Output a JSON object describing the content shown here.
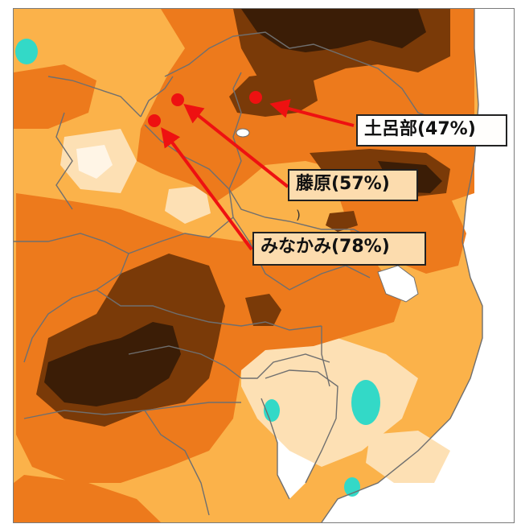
{
  "map": {
    "stations": [
      {
        "name": "土呂部",
        "value": "(47%)",
        "label": "土呂部(47%)"
      },
      {
        "name": "藤原",
        "value": "(57%)",
        "label": "藤原(57%)"
      },
      {
        "name": "みなかみ",
        "value": "(78%)",
        "label": "みなかみ(78%)"
      }
    ],
    "colors": {
      "very_dark_brown": "#3b1d06",
      "dark_brown": "#7a3a08",
      "orange": "#ed7a1c",
      "light_orange": "#fbb24a",
      "pale": "#fde0b4",
      "cream": "#fff5e6",
      "cyan": "#33d9c7",
      "sea": "#ffffff",
      "marker": "#ee1111",
      "border": "#6f6f6f"
    },
    "marker_tick": ")"
  }
}
